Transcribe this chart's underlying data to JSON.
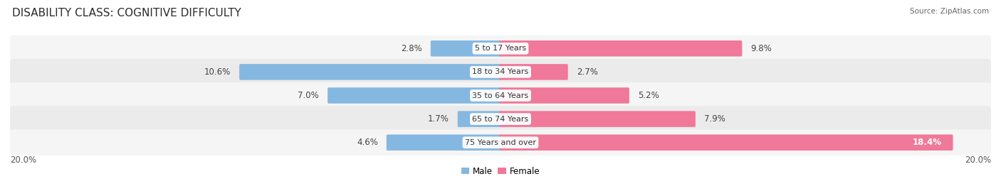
{
  "title": "DISABILITY CLASS: COGNITIVE DIFFICULTY",
  "source": "Source: ZipAtlas.com",
  "categories": [
    "5 to 17 Years",
    "18 to 34 Years",
    "35 to 64 Years",
    "65 to 74 Years",
    "75 Years and over"
  ],
  "male_values": [
    2.8,
    10.6,
    7.0,
    1.7,
    4.6
  ],
  "female_values": [
    9.8,
    2.7,
    5.2,
    7.9,
    18.4
  ],
  "male_color": "#85b8e0",
  "female_color": "#f07898",
  "male_label": "Male",
  "female_label": "Female",
  "max_value": 20.0,
  "bar_height": 0.58,
  "row_bg_color_odd": "#ebebeb",
  "row_bg_color_even": "#f5f5f5",
  "title_fontsize": 11,
  "label_fontsize": 8.5,
  "category_fontsize": 8.0,
  "source_fontsize": 7.5,
  "background_color": "#ffffff"
}
